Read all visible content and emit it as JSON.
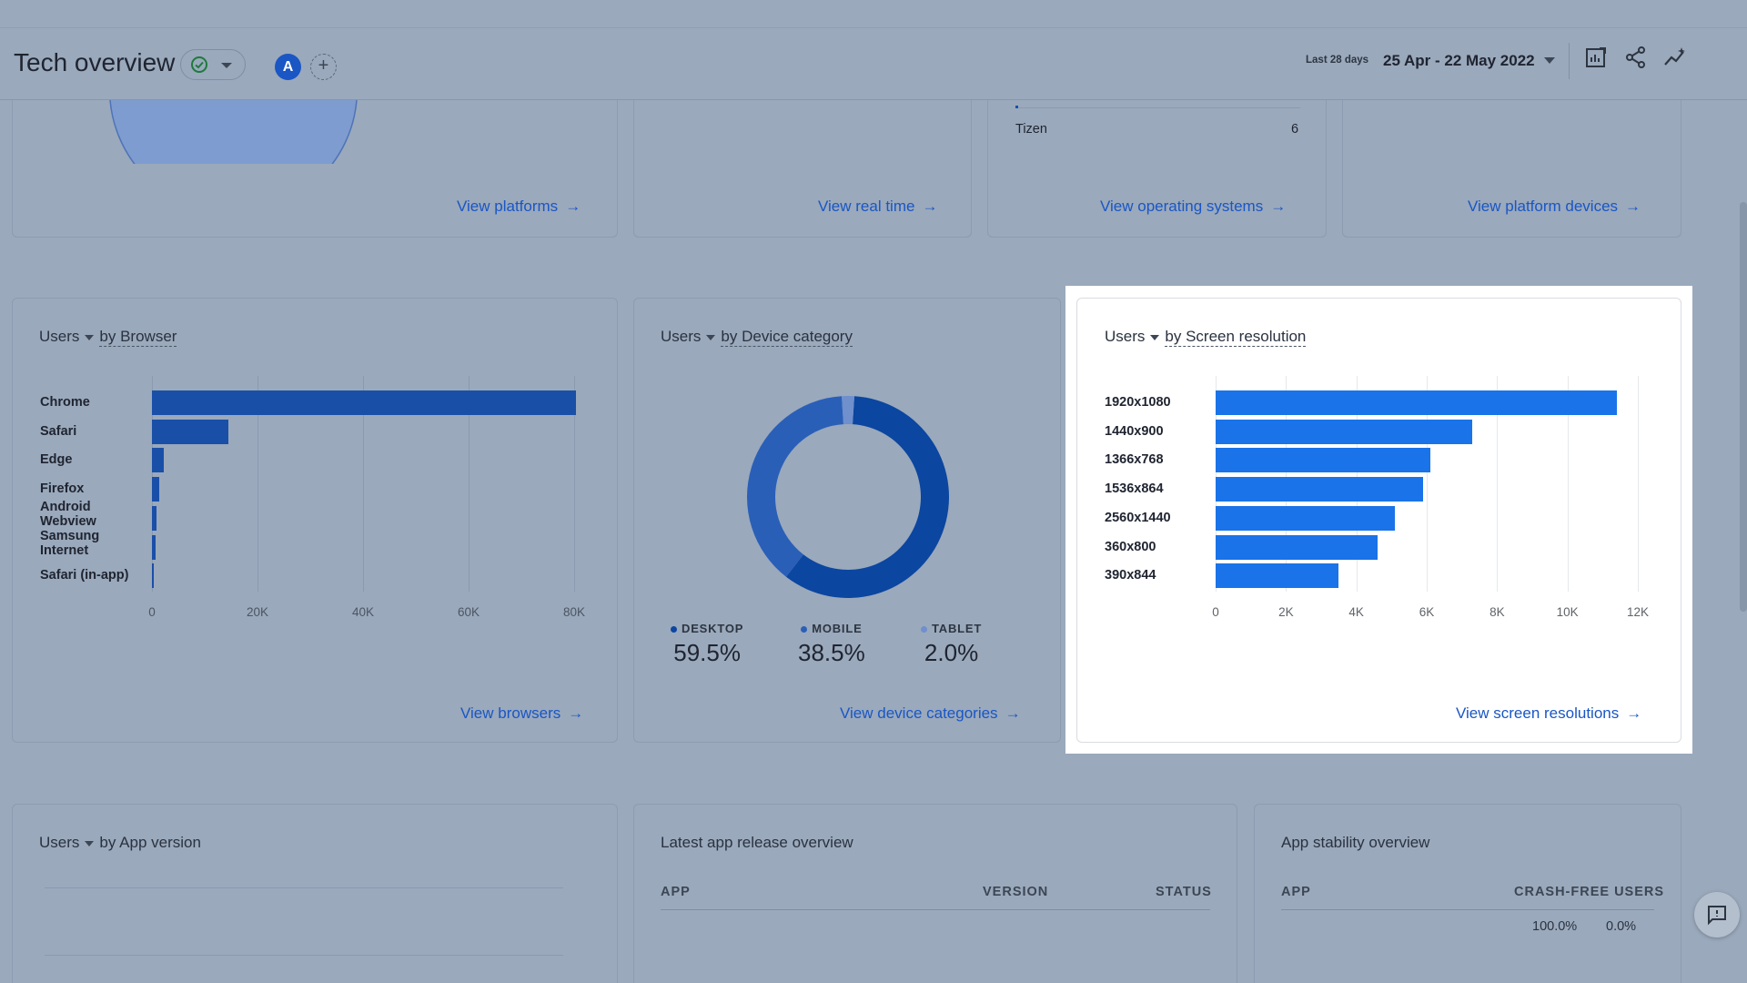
{
  "header": {
    "title": "Tech overview",
    "date_label_small": "Last 28 days",
    "date_range": "25 Apr - 22 May 2022",
    "avatar_letter": "A",
    "add_compare": "+",
    "icons": [
      "customize-report-icon",
      "share-icon",
      "insights-icon"
    ]
  },
  "top_cards": {
    "platforms_link": "View platforms",
    "realtime_link": "View real time",
    "os_link": "View operating systems",
    "os_row_label": "Tizen",
    "os_row_value": "6",
    "devices_link": "View platform devices"
  },
  "browser_card": {
    "metric": "Users",
    "dimension": "by Browser",
    "link": "View browsers",
    "chart_data": {
      "type": "bar",
      "orientation": "horizontal",
      "categories": [
        "Chrome",
        "Safari",
        "Edge",
        "Firefox",
        "Android Webview",
        "Samsung Internet",
        "Safari (in-app)"
      ],
      "values": [
        80300,
        14500,
        2300,
        1300,
        800,
        700,
        400
      ],
      "xlim": [
        0,
        80000
      ],
      "xticks": [
        "0",
        "20K",
        "40K",
        "60K",
        "80K"
      ],
      "bar_color": "#1a4fa8"
    }
  },
  "device_card": {
    "metric": "Users",
    "dimension": "by Device category",
    "link": "View device categories",
    "chart_data": {
      "type": "pie",
      "donut": true,
      "categories": [
        "DESKTOP",
        "MOBILE",
        "TABLET"
      ],
      "values": [
        59.5,
        38.5,
        2.0
      ],
      "labels": [
        "59.5%",
        "38.5%",
        "2.0%"
      ],
      "colors": [
        "#0b46a0",
        "#2a5fb8",
        "#6f8fcd"
      ]
    }
  },
  "resolution_card": {
    "metric": "Users",
    "dimension": "by Screen resolution",
    "link": "View screen resolutions",
    "chart_data": {
      "type": "bar",
      "orientation": "horizontal",
      "categories": [
        "1920x1080",
        "1440x900",
        "1366x768",
        "1536x864",
        "2560x1440",
        "360x800",
        "390x844"
      ],
      "values": [
        11400,
        7300,
        6100,
        5900,
        5100,
        4600,
        3500
      ],
      "xlim": [
        0,
        12000
      ],
      "xticks": [
        "0",
        "2K",
        "4K",
        "6K",
        "8K",
        "10K",
        "12K"
      ],
      "bar_color": "#1a73e8"
    }
  },
  "app_version_card": {
    "metric": "Users",
    "dimension": "by App version"
  },
  "release_card": {
    "title": "Latest app release overview",
    "columns": [
      "APP",
      "VERSION",
      "STATUS"
    ]
  },
  "stability_card": {
    "title": "App stability overview",
    "columns": [
      "APP",
      "CRASH-FREE USERS"
    ],
    "values": [
      "100.0%",
      "0.0%"
    ]
  },
  "colors": {
    "accent": "#1a73e8",
    "link": "#1a56c4",
    "dim_overlay": "#9aa9bc"
  }
}
